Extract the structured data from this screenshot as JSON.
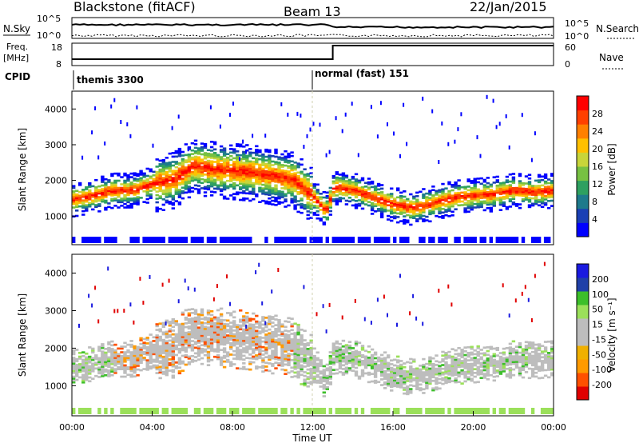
{
  "header": {
    "radar_title": "Blackstone (fitACF)",
    "beam": "Beam 13",
    "date": "22/Jan/2015"
  },
  "summary_panels": {
    "left_labels": [
      "N.Sky",
      "Freq.",
      "[MHz]",
      "CPID"
    ],
    "nsky_ticks": [
      "10^5",
      "10^0"
    ],
    "freq_ticks": [
      "18",
      "8"
    ],
    "right_labels": [
      "N.Search",
      "Nave"
    ],
    "right_ticks_top": [
      "10^5",
      "10^0"
    ],
    "right_ticks_mid": [
      "60",
      "0"
    ]
  },
  "cpid_segments": [
    {
      "label": "themis 3300",
      "start_hour": 0
    },
    {
      "label": "normal (fast) 151",
      "start_hour": 12.0
    }
  ],
  "time_axis": {
    "label": "Time UT",
    "ticks": [
      "00:00",
      "04:00",
      "08:00",
      "12:00",
      "16:00",
      "20:00",
      "00:00"
    ],
    "range_hours": [
      0,
      24
    ]
  },
  "colors": {
    "power": [
      "#0000ff",
      "#1a3fb4",
      "#1e7a8c",
      "#2ea060",
      "#77c142",
      "#c8d53a",
      "#ffc000",
      "#ff8000",
      "#ff4000",
      "#ff0000"
    ],
    "velocity": [
      "#e00000",
      "#ff5000",
      "#ff9a00",
      "#f0b000",
      "#bdbdbd",
      "#bdbdbd",
      "#9be05a",
      "#3cbf2a",
      "#2040a8",
      "#1a1ae0"
    ]
  },
  "chart_data": [
    {
      "type": "heatmap",
      "title": "",
      "xlabel": "Time UT",
      "ylabel": "Slant Range [km]",
      "xlim": [
        0,
        24
      ],
      "ylim": [
        200,
        4500
      ],
      "yticks": [
        "1000",
        "2000",
        "3000",
        "4000"
      ],
      "colorbar": {
        "label": "Power [dB]",
        "ticks": [
          "4",
          "8",
          "12",
          "16",
          "20",
          "24",
          "28"
        ],
        "range": [
          0,
          32
        ]
      },
      "bands": [
        {
          "t": [
            0,
            1,
            2,
            3,
            4,
            5,
            6,
            7,
            8,
            9,
            10,
            11,
            12,
            12.6,
            13,
            14,
            15,
            16,
            17,
            18,
            19,
            20,
            21,
            22,
            23,
            24
          ],
          "center": [
            1450,
            1550,
            1700,
            1700,
            1900,
            2000,
            2400,
            2300,
            2250,
            2200,
            2100,
            2000,
            1500,
            1100,
            1800,
            1700,
            1500,
            1300,
            1200,
            1350,
            1500,
            1550,
            1600,
            1700,
            1650,
            1700
          ],
          "half_width": 300,
          "peak_db": 30
        }
      ]
    },
    {
      "type": "heatmap",
      "title": "",
      "xlabel": "Time UT",
      "ylabel": "Slant Range [km]",
      "xlim": [
        0,
        24
      ],
      "ylim": [
        200,
        4500
      ],
      "yticks": [
        "1000",
        "2000",
        "3000",
        "4000"
      ],
      "colorbar": {
        "label": "Velocity [m s⁻¹]",
        "ticks": [
          "-200",
          "-100",
          "-50",
          "-15",
          "15",
          "50",
          "100",
          "200"
        ],
        "range": [
          -250,
          250
        ]
      },
      "dominant_velocity_mps": 0
    }
  ]
}
